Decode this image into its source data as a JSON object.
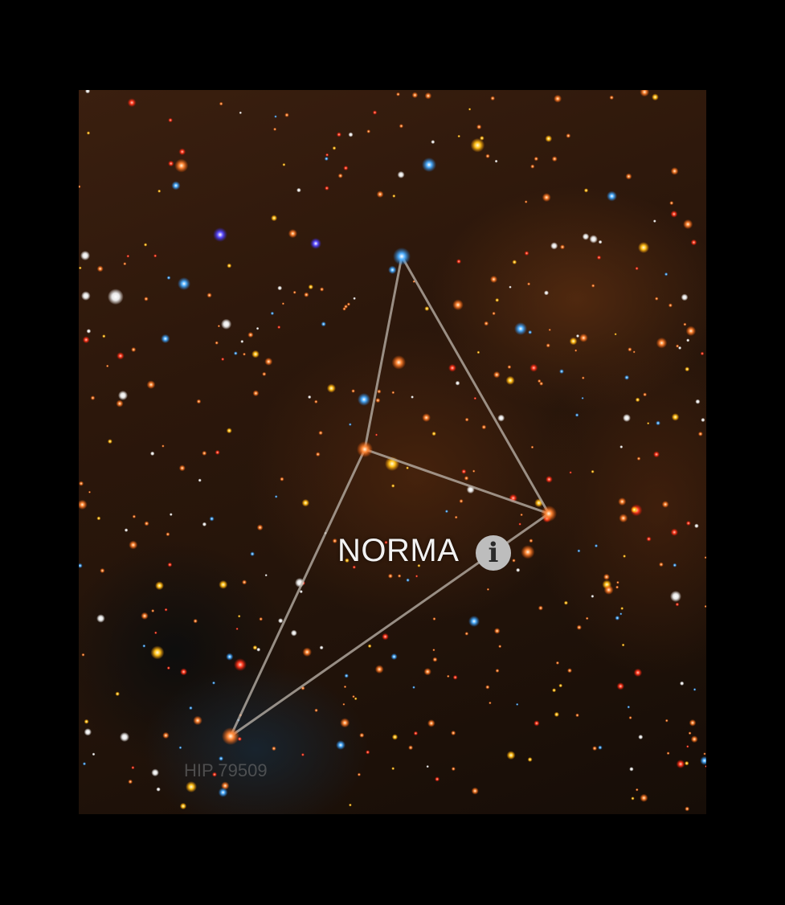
{
  "constellation": {
    "name": "NORMA",
    "info_icon": "info-circle-icon",
    "line_color": "#bfb7ae"
  },
  "star_label": {
    "text": "HIP 79509"
  },
  "colors": {
    "background": "#000000",
    "sky": "#2c170b"
  }
}
